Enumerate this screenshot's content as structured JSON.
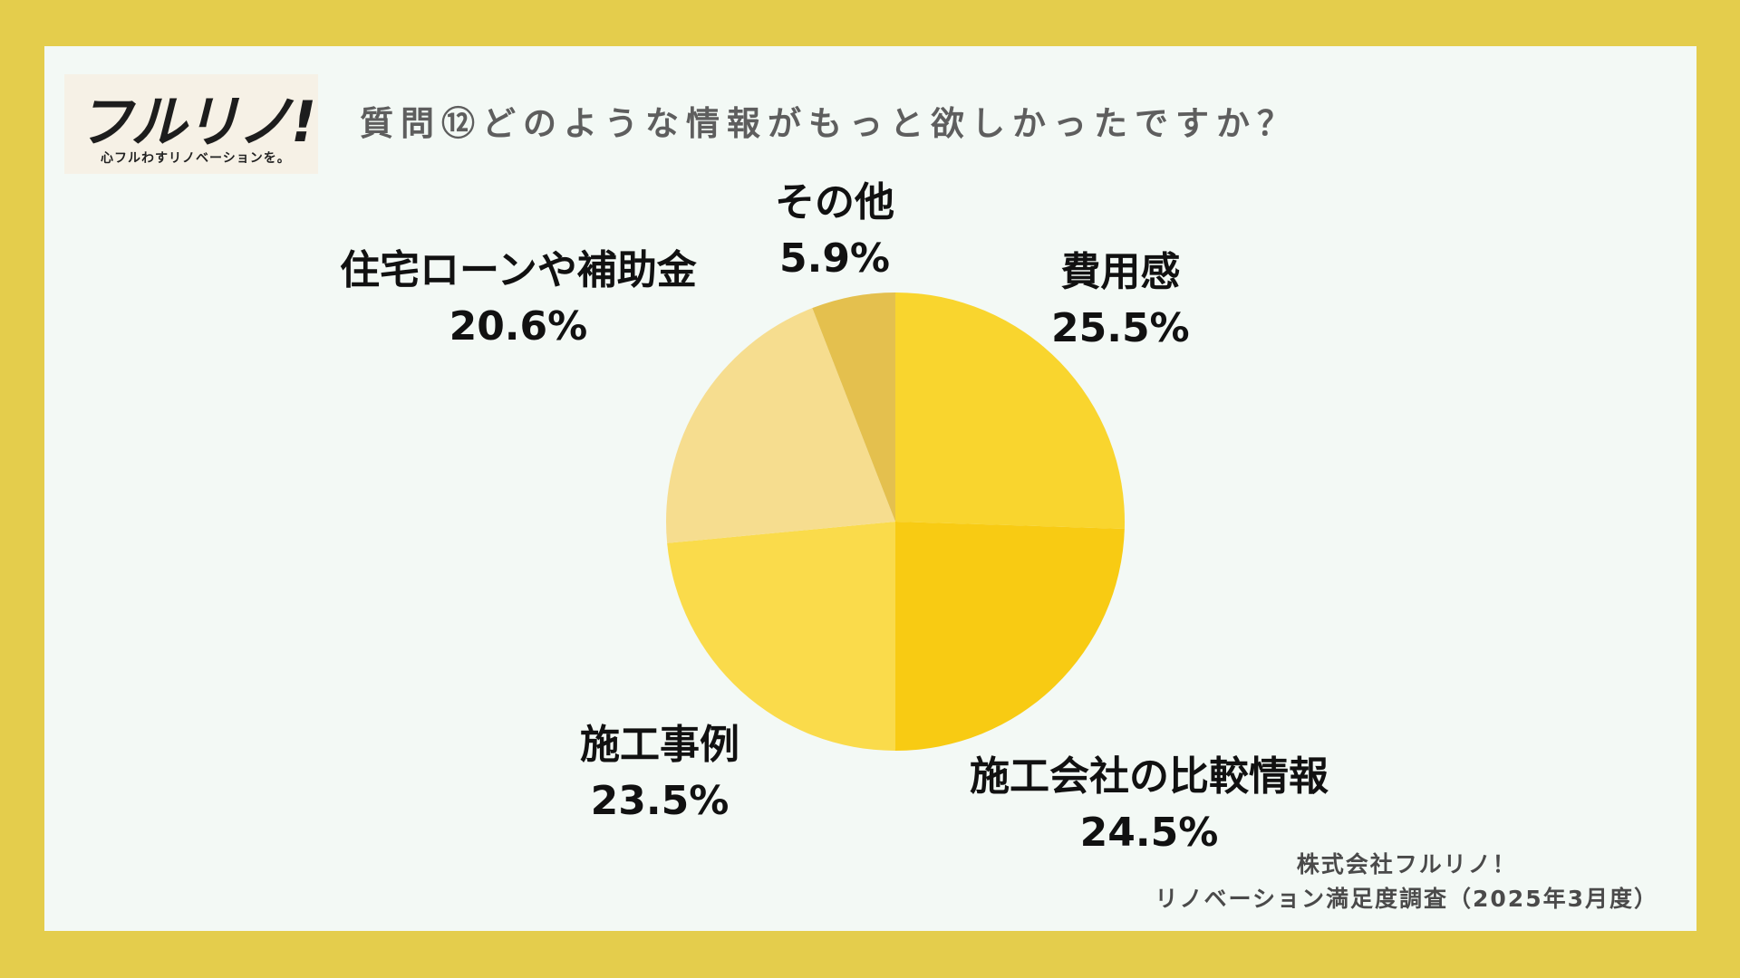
{
  "logo": {
    "mark": "フルリノ!",
    "tagline": "心フルわすリノベーションを。"
  },
  "title": "質問⑫どのような情報がもっと欲しかったですか？",
  "footer": {
    "company": "株式会社フルリノ！",
    "survey": "リノベーション満足度調査（2025年3月度）"
  },
  "colors": {
    "background": "#e4cd4c",
    "panel": "#f3f9f5"
  },
  "chart_data": {
    "type": "pie",
    "title": "質問⑫どのような情報がもっと欲しかったですか？",
    "slices": [
      {
        "label": "費用感",
        "value": 25.5,
        "display": "25.5%",
        "color": "#f9d52e"
      },
      {
        "label": "施工会社の比較情報",
        "value": 24.5,
        "display": "24.5%",
        "color": "#f8cb13"
      },
      {
        "label": "施工事例",
        "value": 23.5,
        "display": "23.5%",
        "color": "#fadb4b"
      },
      {
        "label": "住宅ローンや補助金",
        "value": 20.6,
        "display": "20.6%",
        "color": "#f6dd8f"
      },
      {
        "label": "その他",
        "value": 5.9,
        "display": "5.9%",
        "color": "#e4c04e"
      }
    ],
    "start_angle": "12 o'clock",
    "direction": "clockwise",
    "legend": "none"
  }
}
